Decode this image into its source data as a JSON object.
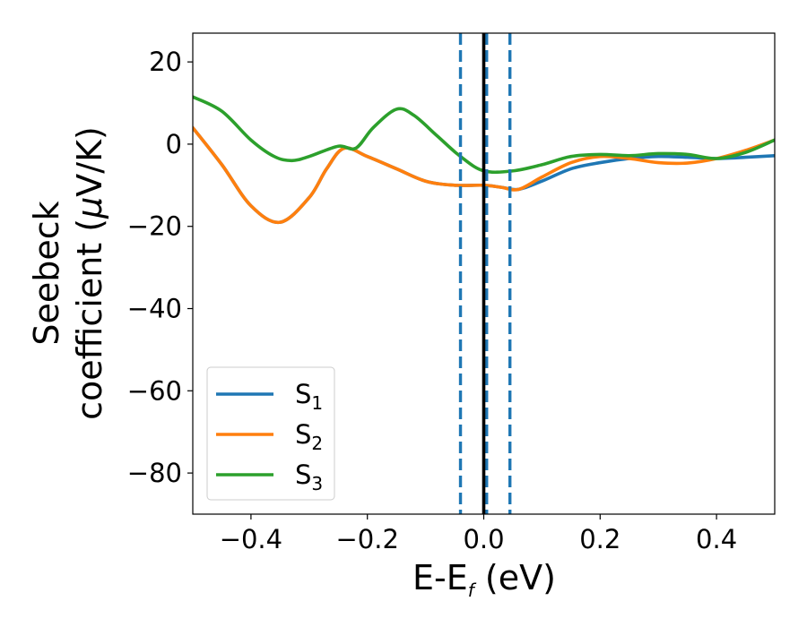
{
  "chart_data": {
    "type": "line",
    "xlabel": "E-E",
    "xlabel_sub": "f",
    "xlabel_suffix": " (eV)",
    "ylabel_line1": "Seebeck",
    "ylabel_line2": "coefficient  (",
    "ylabel_mu": "μ",
    "ylabel_unit": "V/K)",
    "xlim": [
      -0.5,
      0.5
    ],
    "ylim": [
      -90,
      27
    ],
    "xticks": [
      {
        "value": -0.4,
        "label": "−0.4"
      },
      {
        "value": -0.2,
        "label": "−0.2"
      },
      {
        "value": 0.0,
        "label": "0.0"
      },
      {
        "value": 0.2,
        "label": "0.2"
      },
      {
        "value": 0.4,
        "label": "0.4"
      }
    ],
    "yticks": [
      {
        "value": 20,
        "label": "20"
      },
      {
        "value": 0,
        "label": "0"
      },
      {
        "value": -20,
        "label": "−20"
      },
      {
        "value": -40,
        "label": "−40"
      },
      {
        "value": -60,
        "label": "−60"
      },
      {
        "value": -80,
        "label": "−80"
      }
    ],
    "grid": false,
    "legend_position": "bottom-left",
    "vlines": [
      {
        "x": -0.04,
        "style": "dashed",
        "color": "#1f77b4"
      },
      {
        "x": 0.005,
        "style": "dashed",
        "color": "#1f77b4"
      },
      {
        "x": 0.045,
        "style": "dashed",
        "color": "#1f77b4"
      },
      {
        "x": 0.0,
        "style": "solid",
        "color": "#000000"
      }
    ],
    "series": [
      {
        "name": "S",
        "sub": "1",
        "color": "#1f77b4",
        "points": [
          [
            -0.5,
            4
          ],
          [
            -0.45,
            -5
          ],
          [
            -0.4,
            -15
          ],
          [
            -0.35,
            -19
          ],
          [
            -0.3,
            -13
          ],
          [
            -0.27,
            -6
          ],
          [
            -0.24,
            -1
          ],
          [
            -0.2,
            -3
          ],
          [
            -0.15,
            -6
          ],
          [
            -0.1,
            -9
          ],
          [
            -0.05,
            -10
          ],
          [
            0.0,
            -10
          ],
          [
            0.03,
            -10.5
          ],
          [
            0.06,
            -11
          ],
          [
            0.1,
            -9
          ],
          [
            0.15,
            -6
          ],
          [
            0.2,
            -4.5
          ],
          [
            0.25,
            -3.5
          ],
          [
            0.3,
            -3
          ],
          [
            0.35,
            -3.2
          ],
          [
            0.4,
            -3.5
          ],
          [
            0.45,
            -3.2
          ],
          [
            0.5,
            -2.8
          ]
        ]
      },
      {
        "name": "S",
        "sub": "2",
        "color": "#ff7f0e",
        "points": [
          [
            -0.5,
            4
          ],
          [
            -0.45,
            -5
          ],
          [
            -0.4,
            -15
          ],
          [
            -0.35,
            -19
          ],
          [
            -0.3,
            -13
          ],
          [
            -0.27,
            -6
          ],
          [
            -0.24,
            -1
          ],
          [
            -0.2,
            -3
          ],
          [
            -0.15,
            -6
          ],
          [
            -0.1,
            -9
          ],
          [
            -0.05,
            -10
          ],
          [
            0.0,
            -10
          ],
          [
            0.03,
            -10.5
          ],
          [
            0.06,
            -11
          ],
          [
            0.1,
            -8
          ],
          [
            0.15,
            -4.5
          ],
          [
            0.2,
            -3
          ],
          [
            0.25,
            -3.5
          ],
          [
            0.3,
            -4.5
          ],
          [
            0.35,
            -4.6
          ],
          [
            0.4,
            -3.5
          ],
          [
            0.45,
            -1.5
          ],
          [
            0.5,
            1
          ]
        ]
      },
      {
        "name": "S",
        "sub": "3",
        "color": "#2ca02c",
        "points": [
          [
            -0.5,
            11.5
          ],
          [
            -0.45,
            8
          ],
          [
            -0.4,
            1
          ],
          [
            -0.36,
            -3
          ],
          [
            -0.33,
            -4
          ],
          [
            -0.3,
            -3
          ],
          [
            -0.25,
            -0.5
          ],
          [
            -0.22,
            -1
          ],
          [
            -0.19,
            4
          ],
          [
            -0.15,
            8.5
          ],
          [
            -0.12,
            7
          ],
          [
            -0.08,
            2
          ],
          [
            -0.04,
            -3
          ],
          [
            0.0,
            -6.5
          ],
          [
            0.05,
            -6.5
          ],
          [
            0.1,
            -5
          ],
          [
            0.15,
            -3
          ],
          [
            0.2,
            -2.5
          ],
          [
            0.25,
            -2.8
          ],
          [
            0.3,
            -2.3
          ],
          [
            0.35,
            -2.5
          ],
          [
            0.4,
            -3.5
          ],
          [
            0.45,
            -2
          ],
          [
            0.5,
            1
          ]
        ]
      }
    ]
  }
}
